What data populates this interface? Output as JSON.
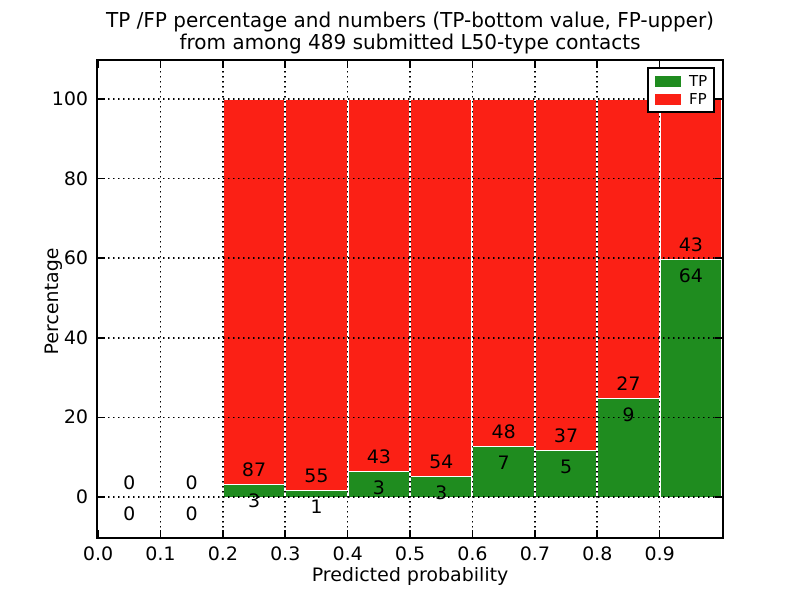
{
  "figure": {
    "title_line1": "TP /FP percentage and numbers (TP-bottom value, FP-upper)",
    "title_line2": "from among 489 submitted L50-type contacts"
  },
  "chart_data": {
    "type": "bar",
    "stacked": true,
    "title": "TP /FP percentage and numbers (TP-bottom value, FP-upper)\nfrom among 489 submitted L50-type contacts",
    "xlabel": "Predicted probability",
    "ylabel": "Percentage",
    "total_submitted_contacts": 489,
    "x_tick_labels": [
      "0.0",
      "0.1",
      "0.2",
      "0.3",
      "0.4",
      "0.5",
      "0.6",
      "0.7",
      "0.8",
      "0.9"
    ],
    "y_tick_values": [
      0,
      20,
      40,
      60,
      80,
      100
    ],
    "xlim": [
      0.0,
      1.0
    ],
    "ylim": [
      -10.3,
      109.8
    ],
    "grid": "dotted black gridlines on both axes, drawn above bars",
    "bar_note": "each 0.1-wide bin is a 100%-stacked bar: TP% (green, bottom) vs FP% (red, top); the upper number label is the FP count, the lower number label is the TP count",
    "legend": {
      "position": "upper right",
      "entries": [
        {
          "label": "TP",
          "color": "#1f8c1f"
        },
        {
          "label": "FP",
          "color": "#fb2015"
        }
      ]
    },
    "bins": [
      {
        "x_start": 0.0,
        "x_end": 0.1,
        "tp": 0,
        "fp": 0
      },
      {
        "x_start": 0.1,
        "x_end": 0.2,
        "tp": 0,
        "fp": 0
      },
      {
        "x_start": 0.2,
        "x_end": 0.3,
        "tp": 3,
        "fp": 87
      },
      {
        "x_start": 0.3,
        "x_end": 0.4,
        "tp": 1,
        "fp": 55
      },
      {
        "x_start": 0.4,
        "x_end": 0.5,
        "tp": 3,
        "fp": 43
      },
      {
        "x_start": 0.5,
        "x_end": 0.6,
        "tp": 3,
        "fp": 54
      },
      {
        "x_start": 0.6,
        "x_end": 0.7,
        "tp": 7,
        "fp": 48
      },
      {
        "x_start": 0.7,
        "x_end": 0.8,
        "tp": 5,
        "fp": 37
      },
      {
        "x_start": 0.8,
        "x_end": 0.9,
        "tp": 9,
        "fp": 27
      },
      {
        "x_start": 0.9,
        "x_end": 1.0,
        "tp": 64,
        "fp": 43
      }
    ]
  },
  "colors": {
    "tp_green": "#1f8c1f",
    "fp_red": "#fb2015",
    "background": "#ffffff",
    "text": "#000000"
  }
}
